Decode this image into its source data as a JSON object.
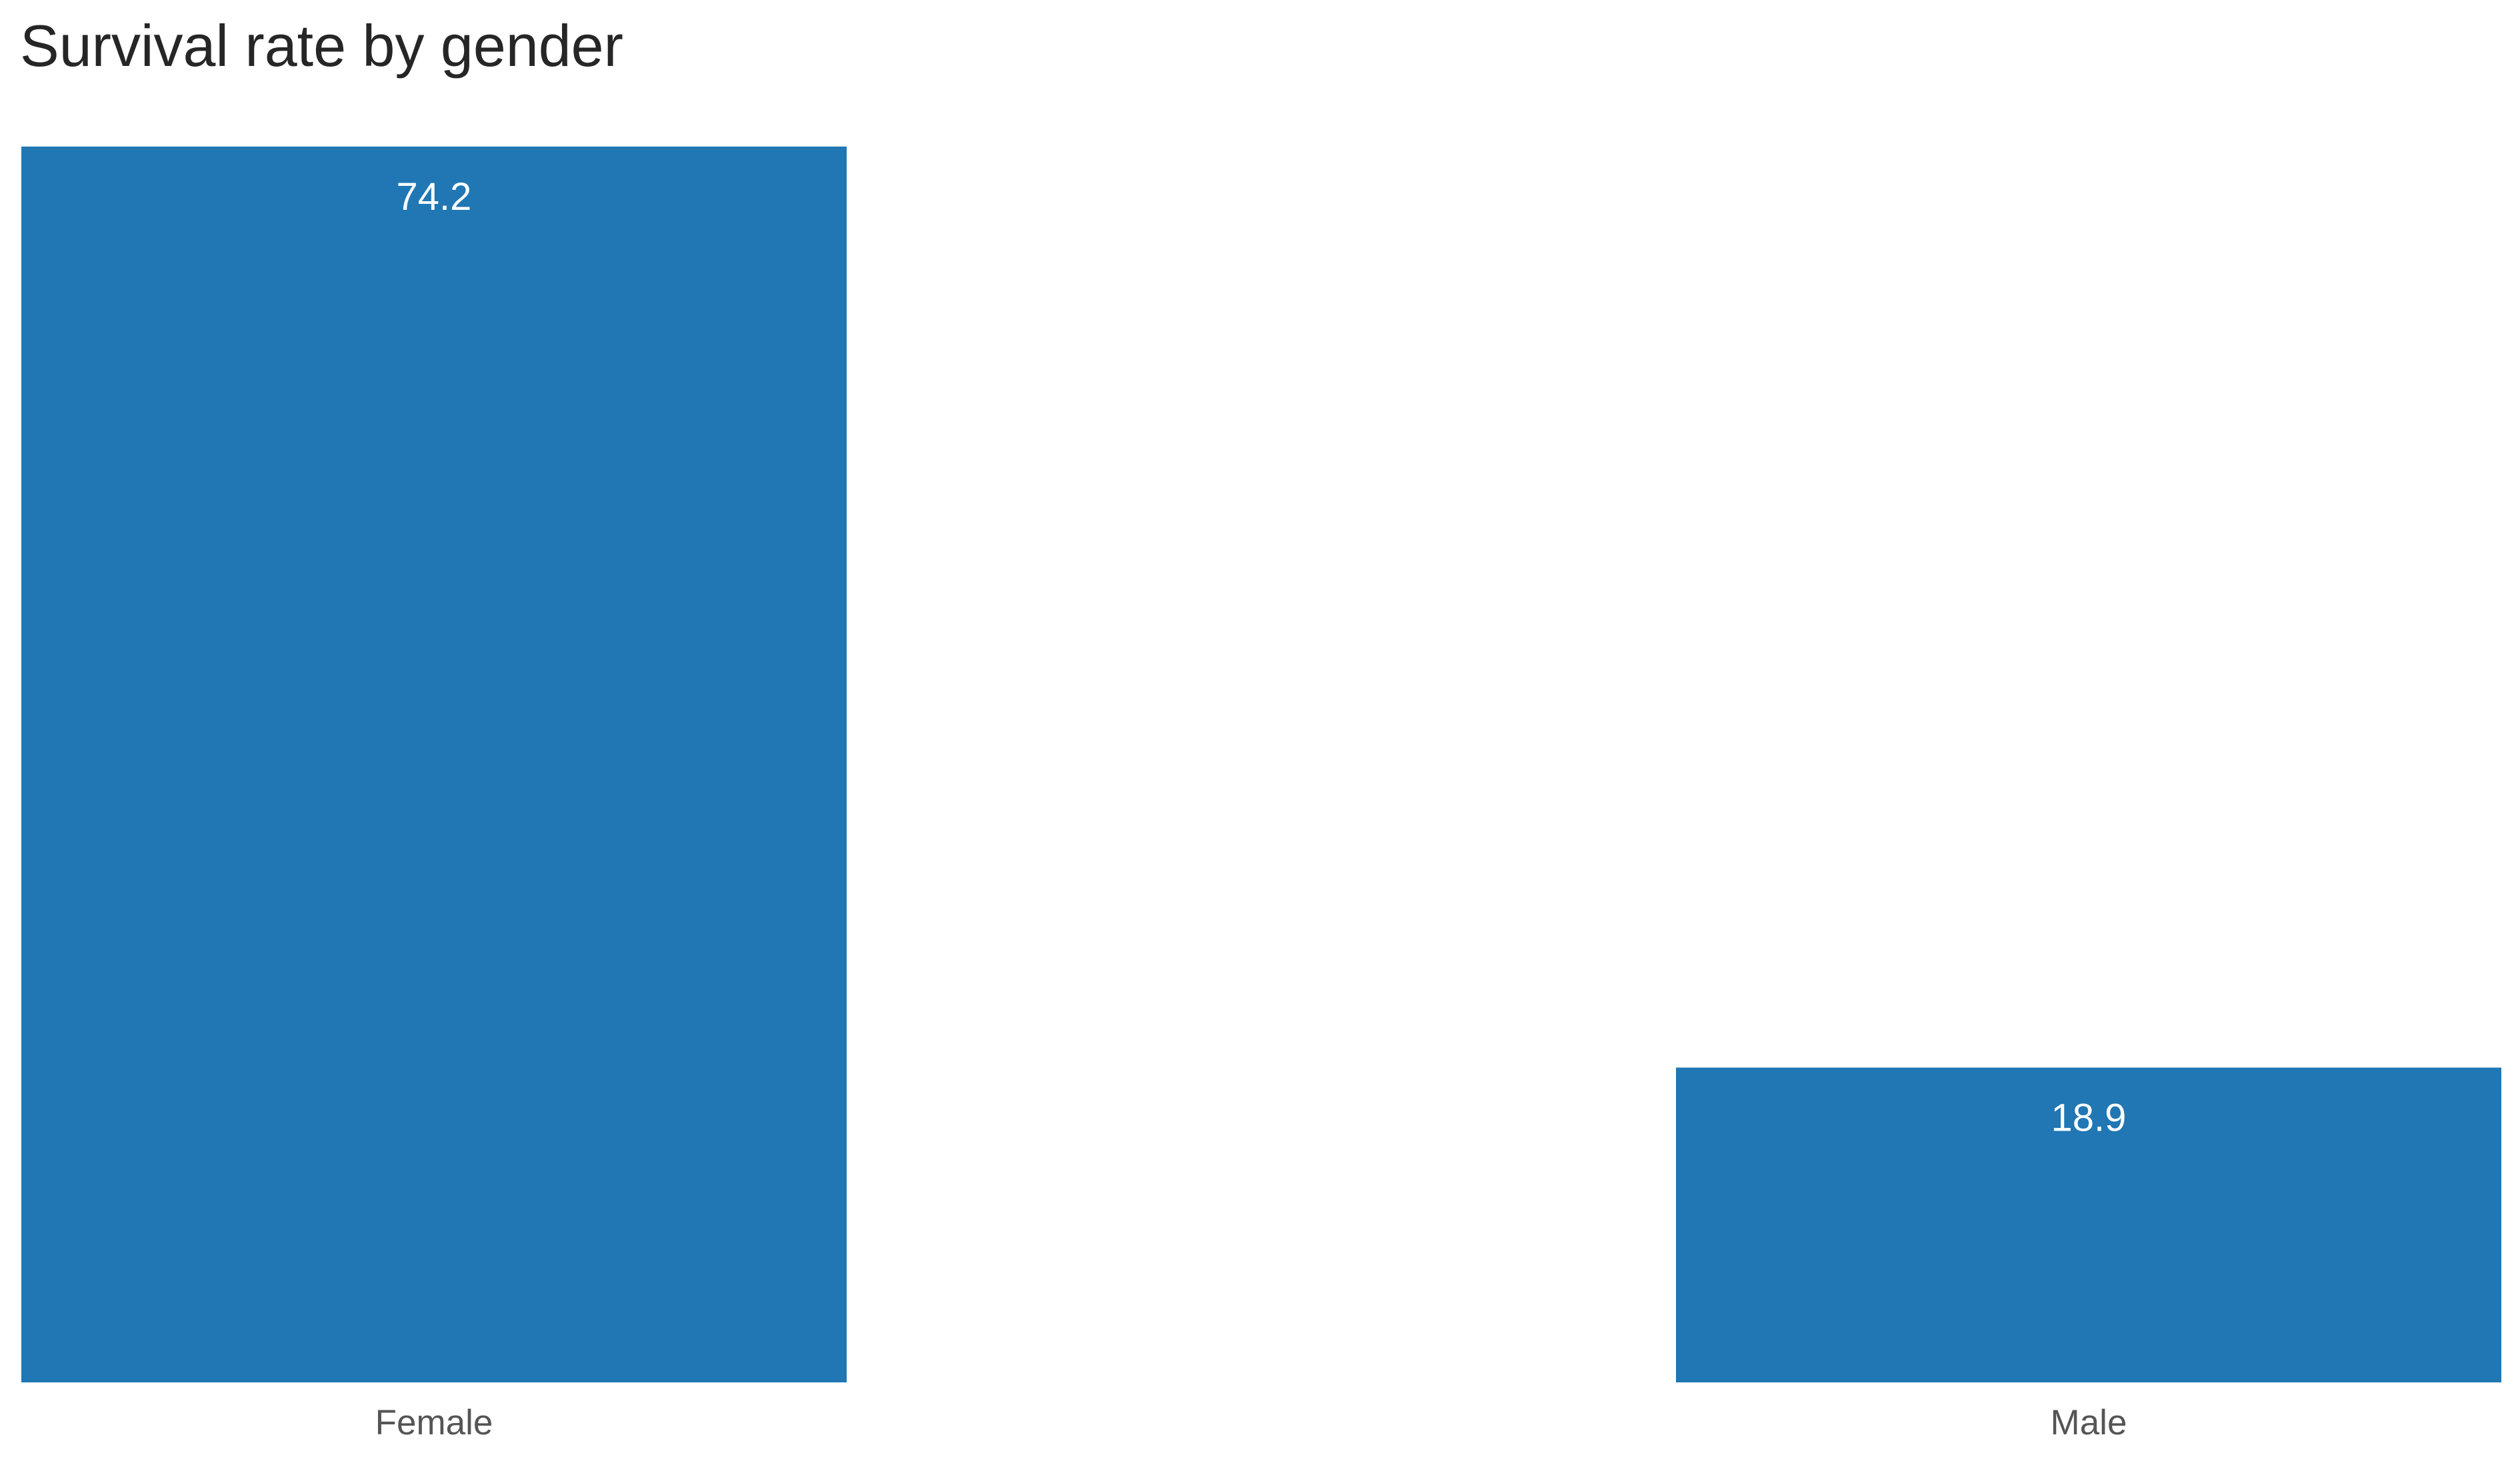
{
  "chart_data": {
    "type": "bar",
    "title": "Survival rate by gender",
    "categories": [
      "Female",
      "Male"
    ],
    "values": [
      74.2,
      18.9
    ],
    "value_labels": [
      "74.2",
      "18.9"
    ],
    "xlabel": "",
    "ylabel": "",
    "ylim": [
      0,
      74.2
    ],
    "grid": false,
    "legend": "none",
    "colors": {
      "bar": "#2077b4",
      "bar_label": "#ffffff",
      "tick_label": "#555555",
      "title": "#262626"
    }
  }
}
